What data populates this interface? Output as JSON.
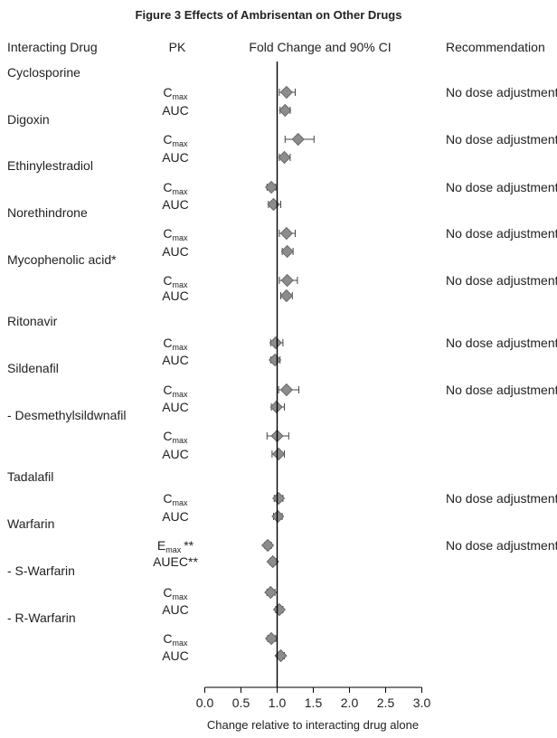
{
  "chart_data": {
    "type": "forest",
    "title": "Figure 3 Effects of Ambrisentan on Other Drugs",
    "headers": {
      "drug": "Interacting Drug",
      "pk": "PK",
      "plot": "Fold Change and 90% CI",
      "recommendation": "Recommendation"
    },
    "xlabel": "Change relative to interacting drug alone",
    "xlim": [
      0.0,
      3.0
    ],
    "xticks": [
      "0.0",
      "0.5",
      "1.0",
      "1.5",
      "2.0",
      "2.5",
      "3.0"
    ],
    "reference_line": 1.0,
    "groups": [
      {
        "drug": "Cyclosporine",
        "recommendation": "No dose adjustment",
        "params": [
          {
            "pk": "C",
            "sub": "max",
            "suffix": "",
            "estimate": 1.13,
            "lower": 1.03,
            "upper": 1.25
          },
          {
            "pk": "AUC",
            "sub": "",
            "suffix": "",
            "estimate": 1.11,
            "lower": 1.04,
            "upper": 1.18
          }
        ]
      },
      {
        "drug": "Digoxin",
        "recommendation": "No dose adjustment",
        "params": [
          {
            "pk": "C",
            "sub": "max",
            "suffix": "",
            "estimate": 1.29,
            "lower": 1.11,
            "upper": 1.51
          },
          {
            "pk": "AUC",
            "sub": "",
            "suffix": "",
            "estimate": 1.1,
            "lower": 1.03,
            "upper": 1.18
          }
        ]
      },
      {
        "drug": "Ethinylestradiol",
        "recommendation": "No dose adjustment",
        "params": [
          {
            "pk": "C",
            "sub": "max",
            "suffix": "",
            "estimate": 0.92,
            "lower": 0.86,
            "upper": 0.98
          },
          {
            "pk": "AUC",
            "sub": "",
            "suffix": "",
            "estimate": 0.95,
            "lower": 0.88,
            "upper": 1.05
          }
        ]
      },
      {
        "drug": "Norethindrone",
        "recommendation": "No dose adjustment",
        "params": [
          {
            "pk": "C",
            "sub": "max",
            "suffix": "",
            "estimate": 1.13,
            "lower": 1.03,
            "upper": 1.25
          },
          {
            "pk": "AUC",
            "sub": "",
            "suffix": "",
            "estimate": 1.14,
            "lower": 1.07,
            "upper": 1.22
          }
        ]
      },
      {
        "drug": "Mycophenolic acid*",
        "recommendation": "No dose adjustment",
        "params": [
          {
            "pk": "C",
            "sub": "max",
            "suffix": "",
            "estimate": 1.14,
            "lower": 1.03,
            "upper": 1.28
          },
          {
            "pk": "AUC",
            "sub": "",
            "suffix": "",
            "estimate": 1.13,
            "lower": 1.05,
            "upper": 1.21
          }
        ]
      },
      {
        "drug": "Ritonavir",
        "recommendation": "No dose adjustment",
        "params": [
          {
            "pk": "C",
            "sub": "max",
            "suffix": "",
            "estimate": 0.98,
            "lower": 0.91,
            "upper": 1.08
          },
          {
            "pk": "AUC",
            "sub": "",
            "suffix": "",
            "estimate": 0.97,
            "lower": 0.91,
            "upper": 1.04
          }
        ]
      },
      {
        "drug": "Sildenafil",
        "recommendation": "No dose adjustment",
        "params": [
          {
            "pk": "C",
            "sub": "max",
            "suffix": "",
            "estimate": 1.13,
            "lower": 1.02,
            "upper": 1.3
          },
          {
            "pk": "AUC",
            "sub": "",
            "suffix": "",
            "estimate": 0.99,
            "lower": 0.92,
            "upper": 1.1
          }
        ]
      },
      {
        "drug": "- Desmethylsildwnafil",
        "recommendation": "",
        "params": [
          {
            "pk": "C",
            "sub": "max",
            "suffix": "",
            "estimate": 1.0,
            "lower": 0.86,
            "upper": 1.16
          },
          {
            "pk": "AUC",
            "sub": "",
            "suffix": "",
            "estimate": 1.02,
            "lower": 0.93,
            "upper": 1.1
          }
        ]
      },
      {
        "drug": "Tadalafil",
        "recommendation": "No dose adjustment",
        "params": [
          {
            "pk": "C",
            "sub": "max",
            "suffix": "",
            "estimate": 1.02,
            "lower": 0.96,
            "upper": 1.08
          },
          {
            "pk": "AUC",
            "sub": "",
            "suffix": "",
            "estimate": 1.01,
            "lower": 0.95,
            "upper": 1.07
          }
        ]
      },
      {
        "drug": "Warfarin",
        "recommendation": "No dose adjustment",
        "params": [
          {
            "pk": "E",
            "sub": "max",
            "suffix": "**",
            "estimate": 0.87,
            "lower": 0.83,
            "upper": 0.92
          },
          {
            "pk": "AUEC**",
            "sub": "",
            "suffix": "",
            "estimate": 0.94,
            "lower": 0.9,
            "upper": 0.98
          }
        ]
      },
      {
        "drug": "- S-Warfarin",
        "recommendation": "",
        "params": [
          {
            "pk": "C",
            "sub": "max",
            "suffix": "",
            "estimate": 0.91,
            "lower": 0.86,
            "upper": 0.97
          },
          {
            "pk": "AUC",
            "sub": "",
            "suffix": "",
            "estimate": 1.03,
            "lower": 0.98,
            "upper": 1.08
          }
        ]
      },
      {
        "drug": "- R-Warfarin",
        "recommendation": "",
        "params": [
          {
            "pk": "C",
            "sub": "max",
            "suffix": "",
            "estimate": 0.92,
            "lower": 0.87,
            "upper": 0.98
          },
          {
            "pk": "AUC",
            "sub": "",
            "suffix": "",
            "estimate": 1.05,
            "lower": 1.0,
            "upper": 1.1
          }
        ]
      }
    ]
  }
}
